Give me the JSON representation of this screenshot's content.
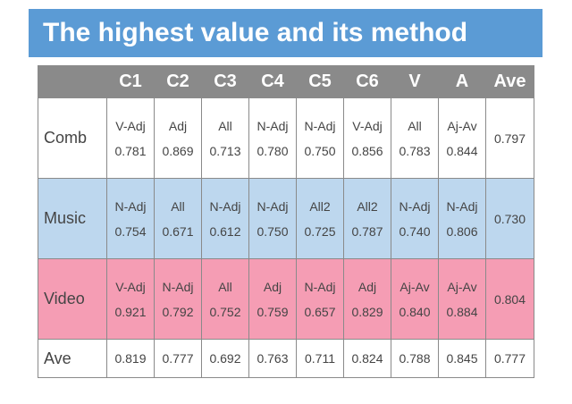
{
  "title": "The highest value and its method",
  "columns": [
    "C1",
    "C2",
    "C3",
    "C4",
    "C5",
    "C6",
    "V",
    "A",
    "Ave"
  ],
  "rows": [
    {
      "label": "Comb",
      "cells": [
        {
          "method": "V-Adj",
          "value": "0.781"
        },
        {
          "method": "Adj",
          "value": "0.869"
        },
        {
          "method": "All",
          "value": "0.713"
        },
        {
          "method": "N-Adj",
          "value": "0.780"
        },
        {
          "method": "N-Adj",
          "value": "0.750"
        },
        {
          "method": "V-Adj",
          "value": "0.856"
        },
        {
          "method": "All",
          "value": "0.783"
        },
        {
          "method": "Aj-Av",
          "value": "0.844"
        }
      ],
      "ave": "0.797"
    },
    {
      "label": "Music",
      "cells": [
        {
          "method": "N-Adj",
          "value": "0.754"
        },
        {
          "method": "All",
          "value": "0.671"
        },
        {
          "method": "N-Adj",
          "value": "0.612"
        },
        {
          "method": "N-Adj",
          "value": "0.750"
        },
        {
          "method": "All2",
          "value": "0.725"
        },
        {
          "method": "All2",
          "value": "0.787"
        },
        {
          "method": "N-Adj",
          "value": "0.740"
        },
        {
          "method": "N-Adj",
          "value": "0.806"
        }
      ],
      "ave": "0.730"
    },
    {
      "label": "Video",
      "cells": [
        {
          "method": "V-Adj",
          "value": "0.921"
        },
        {
          "method": "N-Adj",
          "value": "0.792"
        },
        {
          "method": "All",
          "value": "0.752"
        },
        {
          "method": "Adj",
          "value": "0.759"
        },
        {
          "method": "N-Adj",
          "value": "0.657"
        },
        {
          "method": "Adj",
          "value": "0.829"
        },
        {
          "method": "Aj-Av",
          "value": "0.840"
        },
        {
          "method": "Aj-Av",
          "value": "0.884"
        }
      ],
      "ave": "0.804"
    }
  ],
  "ave_row": {
    "label": "Ave",
    "values": [
      "0.819",
      "0.777",
      "0.692",
      "0.763",
      "0.711",
      "0.824",
      "0.788",
      "0.845",
      "0.777"
    ]
  },
  "colors": {
    "title_bg": "#5b9bd5",
    "header_bg": "#8a8a8a",
    "comb_bg": "#ffffff",
    "music_bg": "#bdd7ee",
    "video_bg": "#f59db4"
  }
}
